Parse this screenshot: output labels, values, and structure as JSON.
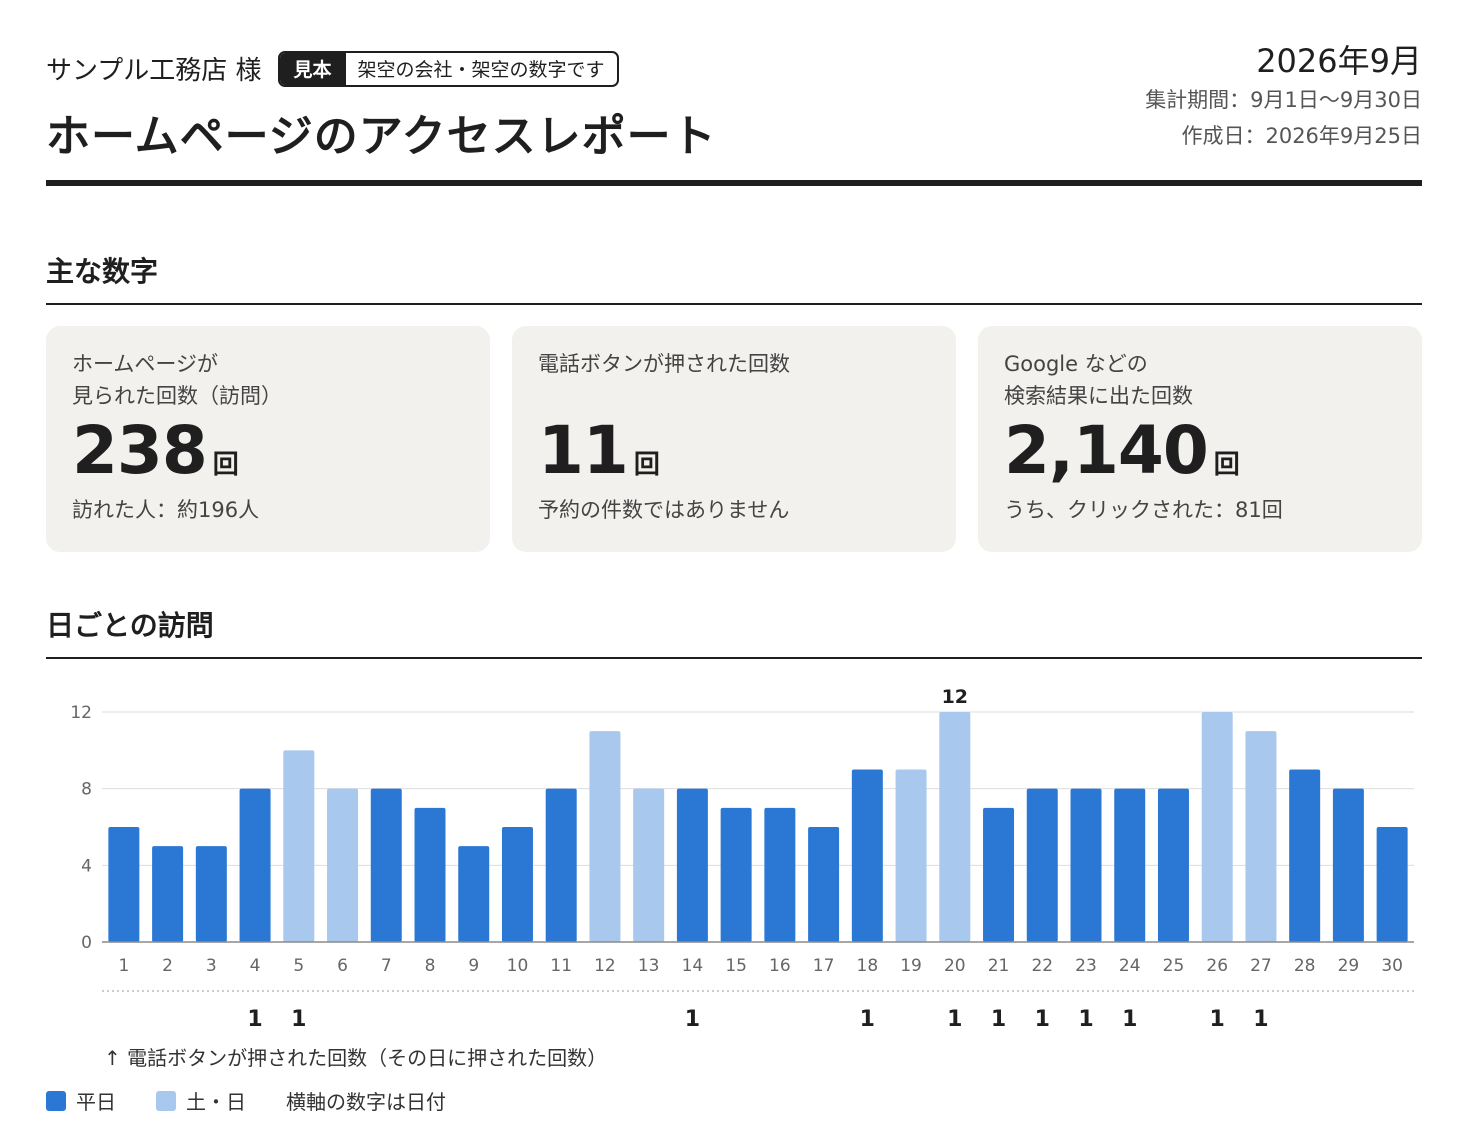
{
  "header": {
    "client_name": "サンプル工務店 様",
    "badge_tag": "見本",
    "badge_note": "架空の会社・架空の数字です",
    "title": "ホームページのアクセスレポート",
    "report_month": "2026年9月",
    "period": "集計期間：9月1日〜9月30日",
    "created": "作成日：2026年9月25日"
  },
  "summary": {
    "section_title": "主な数字",
    "cards": [
      {
        "label_line1": "ホームページが",
        "label_line2": "見られた回数（訪問）",
        "value": "238",
        "unit": "回",
        "sub": "訪れた人：約196人"
      },
      {
        "label_line1": "電話ボタンが押された回数",
        "label_line2": "",
        "value": "11",
        "unit": "回",
        "sub": "予約の件数ではありません"
      },
      {
        "label_line1": "Google などの",
        "label_line2": "検索結果に出た回数",
        "value": "2,140",
        "unit": "回",
        "sub": "うち、クリックされた：81回"
      }
    ]
  },
  "daily": {
    "section_title": "日ごとの訪問",
    "calls_note": "↑ 電話ボタンが押された回数（その日に押された回数）",
    "legend": {
      "weekday": "平日",
      "weekend": "土・日",
      "axis_note": "横軸の数字は日付"
    }
  },
  "chart_data": {
    "type": "bar",
    "title": "",
    "xlabel": "",
    "ylabel": "",
    "ylim": [
      0,
      12
    ],
    "yticks": [
      0,
      4,
      8,
      12
    ],
    "grid": true,
    "categories": [
      "1",
      "2",
      "3",
      "4",
      "5",
      "6",
      "7",
      "8",
      "9",
      "10",
      "11",
      "12",
      "13",
      "14",
      "15",
      "16",
      "17",
      "18",
      "19",
      "20",
      "21",
      "22",
      "23",
      "24",
      "25",
      "26",
      "27",
      "28",
      "29",
      "30"
    ],
    "values": [
      6,
      5,
      5,
      8,
      10,
      8,
      8,
      7,
      5,
      6,
      8,
      11,
      8,
      8,
      7,
      7,
      6,
      9,
      9,
      12,
      7,
      8,
      8,
      8,
      8,
      12,
      11,
      9,
      8,
      6
    ],
    "weekend": [
      false,
      false,
      false,
      false,
      true,
      true,
      false,
      false,
      false,
      false,
      false,
      true,
      true,
      false,
      false,
      false,
      false,
      false,
      true,
      true,
      false,
      false,
      false,
      false,
      false,
      true,
      true,
      false,
      false,
      false
    ],
    "phone_calls": [
      0,
      0,
      0,
      1,
      1,
      0,
      0,
      0,
      0,
      0,
      0,
      0,
      0,
      1,
      0,
      0,
      0,
      1,
      0,
      1,
      1,
      1,
      1,
      1,
      0,
      1,
      1,
      0,
      0,
      0
    ],
    "data_labels": [
      {
        "category": "20",
        "text": "12"
      }
    ],
    "colors": {
      "weekday": "#2b78d4",
      "weekend": "#a8c8ee"
    }
  }
}
